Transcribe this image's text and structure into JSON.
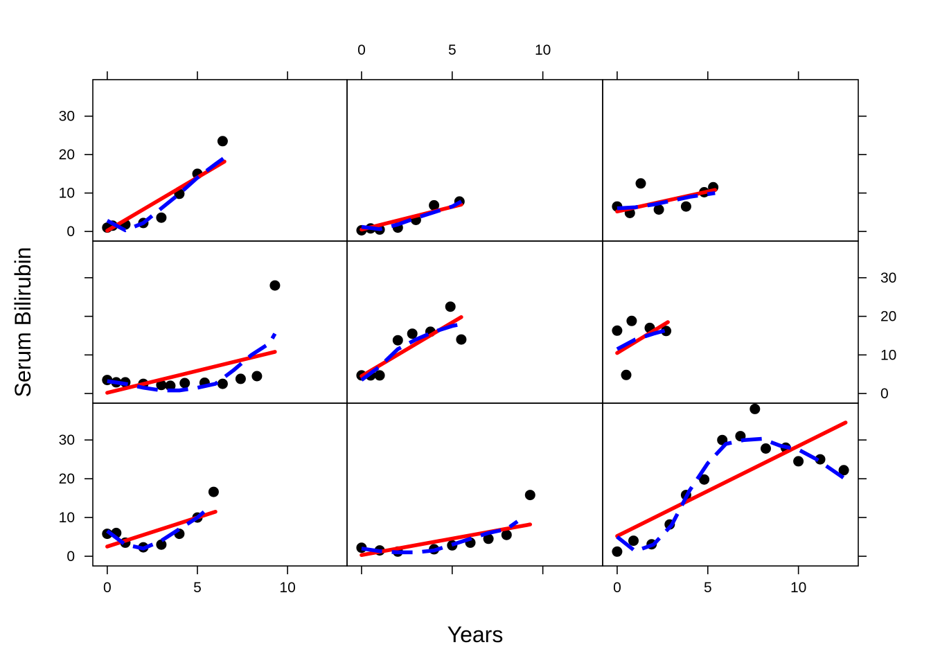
{
  "chart_data": {
    "type": "scatter",
    "xlabel": "Years",
    "ylabel": "Serum Bilirubin",
    "xlim": [
      -0.8,
      13.3
    ],
    "ylim": [
      -2.5,
      39.5
    ],
    "x_ticks": [
      0,
      5,
      10
    ],
    "y_ticks": [
      0,
      10,
      20,
      30
    ],
    "x_tick_labels": [
      "0",
      "5",
      "10"
    ],
    "y_tick_labels": [
      "0",
      "10",
      "20",
      "30"
    ],
    "layout": {
      "rows": 3,
      "cols": 3,
      "alternating_axes": true
    },
    "colors": {
      "points": "#000000",
      "linear_fit": "#ff0000",
      "smooth_fit": "#0000ff"
    },
    "panels": [
      {
        "row": 1,
        "col": 1,
        "points": [
          [
            0,
            1
          ],
          [
            0.3,
            1.5
          ],
          [
            1,
            1.8
          ],
          [
            2,
            2.2
          ],
          [
            3,
            3.6
          ],
          [
            4,
            9.8
          ],
          [
            5,
            15
          ],
          [
            6.4,
            23.5
          ]
        ],
        "linear": [
          [
            0,
            0.2
          ],
          [
            6.5,
            18.2
          ]
        ],
        "smooth": [
          [
            0,
            2.8
          ],
          [
            1,
            0.3
          ],
          [
            2,
            2.2
          ],
          [
            3,
            6
          ],
          [
            4,
            9.8
          ],
          [
            5,
            14
          ],
          [
            6,
            17.5
          ],
          [
            6.5,
            19.2
          ]
        ]
      },
      {
        "row": 1,
        "col": 2,
        "points": [
          [
            0,
            0.3
          ],
          [
            0.5,
            0.8
          ],
          [
            1,
            0.5
          ],
          [
            2,
            1
          ],
          [
            3,
            3
          ],
          [
            4,
            6.8
          ],
          [
            5.4,
            7.8
          ]
        ],
        "linear": [
          [
            0,
            0.5
          ],
          [
            5.5,
            7
          ]
        ],
        "smooth": [
          [
            0,
            1.2
          ],
          [
            1,
            0.6
          ],
          [
            2,
            1.8
          ],
          [
            3,
            3.5
          ],
          [
            4,
            5
          ],
          [
            5,
            6.5
          ],
          [
            5.5,
            7.8
          ]
        ]
      },
      {
        "row": 1,
        "col": 3,
        "points": [
          [
            0,
            6.5
          ],
          [
            0.7,
            4.8
          ],
          [
            1.3,
            12.5
          ],
          [
            2.3,
            5.7
          ],
          [
            3.8,
            6.5
          ],
          [
            4.8,
            10.2
          ],
          [
            5.3,
            11.5
          ]
        ],
        "linear": [
          [
            0,
            5.2
          ],
          [
            5.4,
            10.8
          ]
        ],
        "smooth": [
          [
            0,
            6
          ],
          [
            1,
            6.3
          ],
          [
            2,
            7
          ],
          [
            3,
            8
          ],
          [
            4,
            9
          ],
          [
            5.4,
            10
          ]
        ]
      },
      {
        "row": 2,
        "col": 1,
        "points": [
          [
            0,
            3.5
          ],
          [
            0.5,
            2.9
          ],
          [
            1,
            2.9
          ],
          [
            2,
            2.5
          ],
          [
            3,
            2.2
          ],
          [
            3.5,
            2
          ],
          [
            4.3,
            2.7
          ],
          [
            5.4,
            2.8
          ],
          [
            6.4,
            2.5
          ],
          [
            7.4,
            3.8
          ],
          [
            8.3,
            4.5
          ],
          [
            9.3,
            28
          ]
        ],
        "linear": [
          [
            0,
            0.2
          ],
          [
            9.3,
            10.8
          ]
        ],
        "smooth": [
          [
            0,
            3.2
          ],
          [
            1,
            2.5
          ],
          [
            2,
            1.5
          ],
          [
            3,
            0.8
          ],
          [
            4,
            0.8
          ],
          [
            5,
            1.5
          ],
          [
            6,
            2.5
          ],
          [
            7,
            6
          ],
          [
            8,
            10
          ],
          [
            9,
            13
          ],
          [
            9.3,
            15.5
          ]
        ]
      },
      {
        "row": 2,
        "col": 2,
        "points": [
          [
            0,
            4.7
          ],
          [
            0.5,
            4.7
          ],
          [
            1,
            4.7
          ],
          [
            2,
            13.8
          ],
          [
            2.8,
            15.5
          ],
          [
            3.8,
            16
          ],
          [
            4.9,
            22.5
          ],
          [
            5.5,
            14
          ]
        ],
        "linear": [
          [
            0,
            4.5
          ],
          [
            5.5,
            19.8
          ]
        ],
        "smooth": [
          [
            0,
            3.5
          ],
          [
            1,
            7
          ],
          [
            2,
            11.5
          ],
          [
            3,
            14
          ],
          [
            4,
            16
          ],
          [
            5,
            17.5
          ],
          [
            5.5,
            18
          ]
        ]
      },
      {
        "row": 2,
        "col": 3,
        "points": [
          [
            0,
            16.3
          ],
          [
            0.5,
            4.8
          ],
          [
            0.8,
            18.8
          ],
          [
            1.8,
            17
          ],
          [
            2.7,
            16.2
          ]
        ],
        "linear": [
          [
            0,
            10.5
          ],
          [
            2.8,
            18.5
          ]
        ],
        "smooth": [
          [
            0,
            11.5
          ],
          [
            1,
            14
          ],
          [
            2,
            15.5
          ],
          [
            2.8,
            16.5
          ]
        ]
      },
      {
        "row": 3,
        "col": 1,
        "points": [
          [
            0,
            5.8
          ],
          [
            0.5,
            6
          ],
          [
            1,
            3.5
          ],
          [
            2,
            2.3
          ],
          [
            3,
            3
          ],
          [
            4,
            5.8
          ],
          [
            5,
            10
          ],
          [
            5.9,
            16.6
          ]
        ],
        "linear": [
          [
            0,
            2.5
          ],
          [
            6,
            11.5
          ]
        ],
        "smooth": [
          [
            0,
            6.5
          ],
          [
            1,
            3
          ],
          [
            2,
            2
          ],
          [
            3,
            4
          ],
          [
            4,
            7
          ],
          [
            5,
            10
          ],
          [
            5.5,
            12
          ]
        ]
      },
      {
        "row": 3,
        "col": 2,
        "points": [
          [
            0,
            2.2
          ],
          [
            1,
            1.5
          ],
          [
            2,
            1.2
          ],
          [
            4,
            1.8
          ],
          [
            5,
            2.8
          ],
          [
            6,
            3.5
          ],
          [
            7,
            4.5
          ],
          [
            8,
            5.5
          ],
          [
            9.3,
            15.8
          ]
        ],
        "linear": [
          [
            0,
            0.3
          ],
          [
            9.3,
            8.2
          ]
        ],
        "smooth": [
          [
            0,
            2
          ],
          [
            1,
            1.3
          ],
          [
            2,
            1
          ],
          [
            3,
            1
          ],
          [
            4,
            1.5
          ],
          [
            5,
            3
          ],
          [
            6,
            4.5
          ],
          [
            7,
            6
          ],
          [
            8,
            7
          ],
          [
            8.6,
            9
          ]
        ]
      },
      {
        "row": 3,
        "col": 3,
        "points": [
          [
            0,
            1.2
          ],
          [
            0.9,
            4
          ],
          [
            1.9,
            3.1
          ],
          [
            2.9,
            8.2
          ],
          [
            3.8,
            15.8
          ],
          [
            4.8,
            19.8
          ],
          [
            5.8,
            30
          ],
          [
            6.8,
            31
          ],
          [
            7.6,
            38
          ],
          [
            8.2,
            27.8
          ],
          [
            9.3,
            28
          ],
          [
            10,
            24.5
          ],
          [
            11.2,
            25
          ],
          [
            12.5,
            22.2
          ]
        ],
        "linear": [
          [
            0,
            5.2
          ],
          [
            12.6,
            34.5
          ]
        ],
        "smooth": [
          [
            0,
            5
          ],
          [
            1,
            1.3
          ],
          [
            2,
            3
          ],
          [
            3,
            8
          ],
          [
            4,
            17
          ],
          [
            5,
            24
          ],
          [
            6,
            29
          ],
          [
            7,
            30
          ],
          [
            8,
            30.3
          ],
          [
            9,
            28.5
          ],
          [
            10,
            27.5
          ],
          [
            11,
            25
          ],
          [
            12.5,
            20.2
          ]
        ]
      }
    ]
  }
}
